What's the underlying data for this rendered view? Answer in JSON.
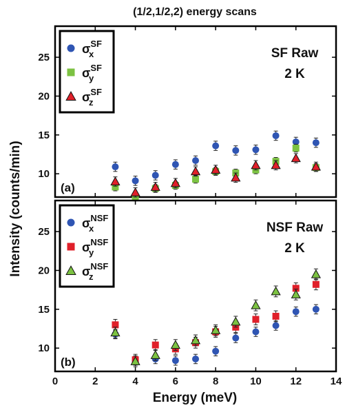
{
  "figure": {
    "title": "(1/2,1/2,2) energy scans",
    "ylabel": "Intensity (counts/min)",
    "xlabel": "Energy (meV)"
  },
  "chart_data": [
    {
      "type": "scatter",
      "panel_label": "(a)",
      "annotation_line1": "SF Raw",
      "annotation_line2": "2 K",
      "xlim": [
        0,
        14
      ],
      "ylim": [
        7,
        29
      ],
      "x_ticks": [
        "0",
        "2",
        "4",
        "6",
        "8",
        "10",
        "12",
        "14"
      ],
      "y_ticks": [
        10,
        15,
        20,
        25
      ],
      "legend_position": "top-left",
      "series": [
        {
          "symbol": "σ",
          "sub": "x",
          "sup": "SF",
          "marker": "circle",
          "color": "#2f55b3",
          "x": [
            3,
            4,
            5,
            6,
            7,
            8,
            9,
            10,
            11,
            12,
            13
          ],
          "y": [
            10.9,
            9.1,
            9.8,
            11.2,
            11.7,
            13.6,
            13.0,
            13.1,
            14.9,
            14.1,
            14.0
          ],
          "err": [
            0.6,
            0.6,
            0.6,
            0.6,
            0.6,
            0.6,
            0.6,
            0.6,
            0.6,
            0.6,
            0.6
          ]
        },
        {
          "symbol": "σ",
          "sub": "y",
          "sup": "SF",
          "marker": "square",
          "color": "#7cc242",
          "x": [
            3,
            4,
            5,
            6,
            7,
            8,
            9,
            10,
            11,
            12,
            13
          ],
          "y": [
            8.3,
            7.0,
            8.1,
            8.5,
            9.3,
            10.3,
            10.1,
            10.5,
            11.6,
            13.3,
            10.8
          ],
          "err": [
            0.5,
            0.5,
            0.5,
            0.5,
            0.5,
            0.5,
            0.5,
            0.5,
            0.5,
            0.5,
            0.5
          ]
        },
        {
          "symbol": "σ",
          "sub": "z",
          "sup": "SF",
          "marker": "triangle",
          "color": "#e0202a",
          "x": [
            3,
            4,
            5,
            6,
            7,
            8,
            9,
            10,
            11,
            12,
            13
          ],
          "y": [
            9.0,
            7.6,
            8.3,
            8.8,
            10.3,
            10.5,
            9.5,
            11.1,
            11.1,
            12.0,
            10.9
          ],
          "err": [
            0.6,
            0.6,
            0.6,
            0.6,
            0.6,
            0.6,
            0.6,
            0.6,
            0.6,
            0.6,
            0.6
          ]
        }
      ]
    },
    {
      "type": "scatter",
      "panel_label": "(b)",
      "annotation_line1": "NSF Raw",
      "annotation_line2": "2 K",
      "xlim": [
        0,
        14
      ],
      "ylim": [
        7,
        29
      ],
      "x_ticks": [
        "0",
        "2",
        "4",
        "6",
        "8",
        "10",
        "12",
        "14"
      ],
      "y_ticks": [
        10,
        15,
        20,
        25
      ],
      "legend_position": "top-left",
      "series": [
        {
          "symbol": "σ",
          "sub": "x",
          "sup": "NSF",
          "marker": "circle",
          "color": "#2f55b3",
          "x": [
            3,
            4,
            5,
            6,
            7,
            8,
            9,
            10,
            11,
            12,
            13
          ],
          "y": [
            11.8,
            8.4,
            8.6,
            8.4,
            8.6,
            9.6,
            11.3,
            12.1,
            12.9,
            14.7,
            15.0
          ],
          "err": [
            0.6,
            0.6,
            0.6,
            0.6,
            0.6,
            0.6,
            0.6,
            0.6,
            0.6,
            0.6,
            0.6
          ]
        },
        {
          "symbol": "σ",
          "sub": "y",
          "sup": "NSF",
          "marker": "square",
          "color": "#e0202a",
          "x": [
            3,
            4,
            5,
            6,
            7,
            8,
            9,
            10,
            11,
            12,
            13
          ],
          "y": [
            13.0,
            8.5,
            10.4,
            9.9,
            10.7,
            12.1,
            12.7,
            13.7,
            14.1,
            17.7,
            18.2
          ],
          "err": [
            0.7,
            0.7,
            0.7,
            0.7,
            0.7,
            0.7,
            0.7,
            0.7,
            0.7,
            0.7,
            0.7
          ]
        },
        {
          "symbol": "σ",
          "sub": "z",
          "sup": "NSF",
          "marker": "triangle",
          "color": "#7cc242",
          "x": [
            3,
            4,
            5,
            6,
            7,
            8,
            9,
            10,
            11,
            12,
            13
          ],
          "y": [
            12.0,
            8.3,
            9.1,
            10.4,
            11.0,
            12.3,
            13.4,
            15.5,
            17.3,
            16.9,
            19.5
          ],
          "err": [
            0.7,
            0.7,
            0.7,
            0.7,
            0.7,
            0.7,
            0.7,
            0.7,
            0.7,
            0.7,
            0.7
          ]
        }
      ]
    }
  ]
}
